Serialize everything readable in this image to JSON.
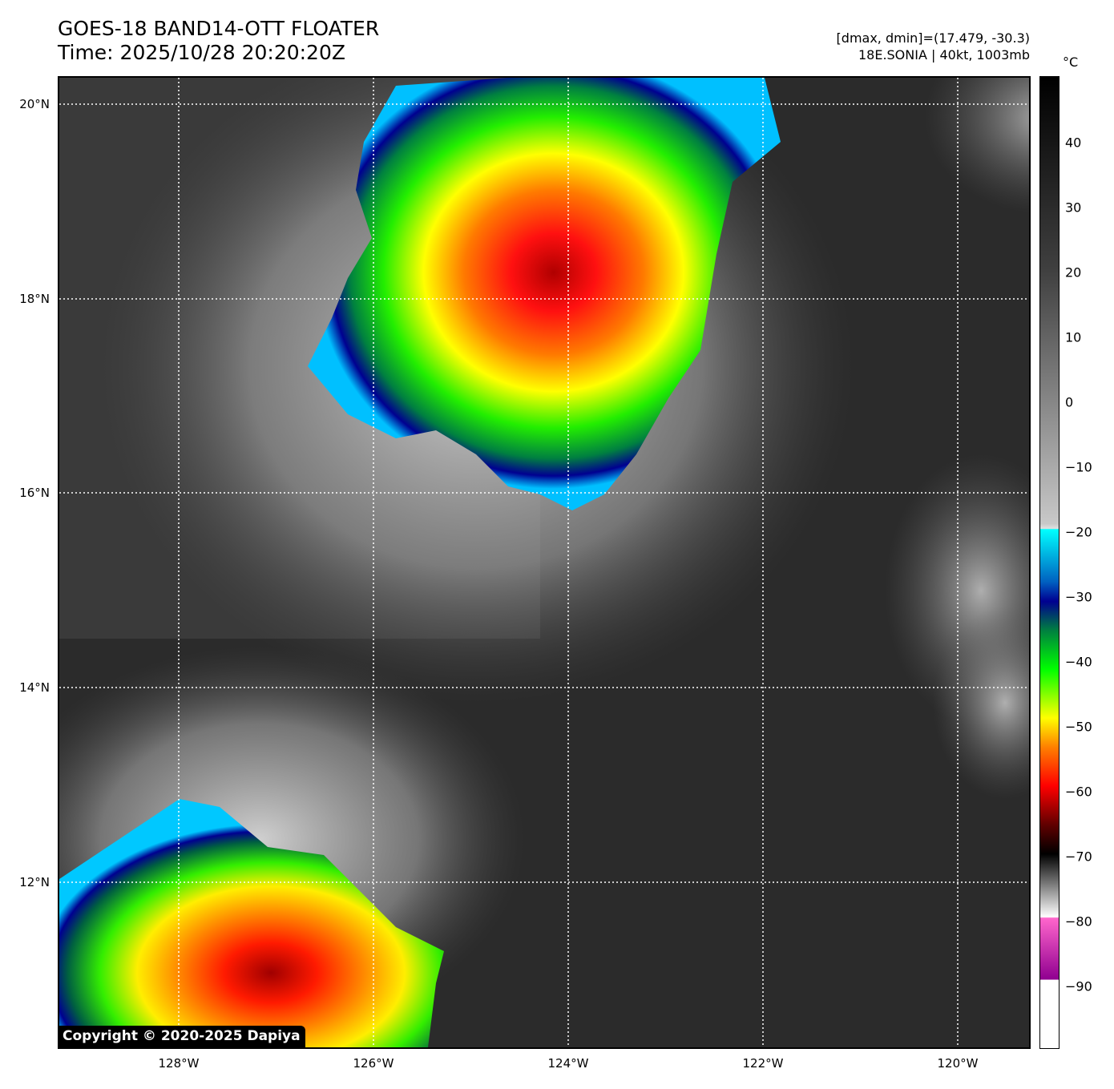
{
  "header": {
    "title_line1": "GOES-18 BAND14-OTT FLOATER",
    "title_line2": "Time: 2025/10/28 20:20:20Z",
    "range_text": "[dmax, dmin]=(17.479, -30.3)",
    "storm_text": "18E.SONIA | 40kt, 1003mb"
  },
  "map": {
    "lat_labels": [
      "20°N",
      "18°N",
      "16°N",
      "14°N",
      "12°N"
    ],
    "lon_labels": [
      "128°W",
      "126°W",
      "124°W",
      "122°W",
      "120°W"
    ],
    "gridlines": "dotted-white"
  },
  "colorbar": {
    "unit": "°C",
    "ticks": [
      "40",
      "30",
      "20",
      "10",
      "0",
      "−10",
      "−20",
      "−30",
      "−40",
      "−50",
      "−60",
      "−70",
      "−80",
      "−90"
    ],
    "colors": {
      "warm": "#000000",
      "neutral": "#c8c8c8",
      "cyan": "#00ffff",
      "blue": "#000090",
      "green": "#00ff00",
      "yellow": "#ffff00",
      "orange": "#ff8000",
      "red": "#ff0000",
      "dark_red": "#600000",
      "magenta": "#ff66cc",
      "purple": "#900090"
    }
  },
  "footer": {
    "copyright": "Copyright © 2020-2025 Dapiya"
  }
}
